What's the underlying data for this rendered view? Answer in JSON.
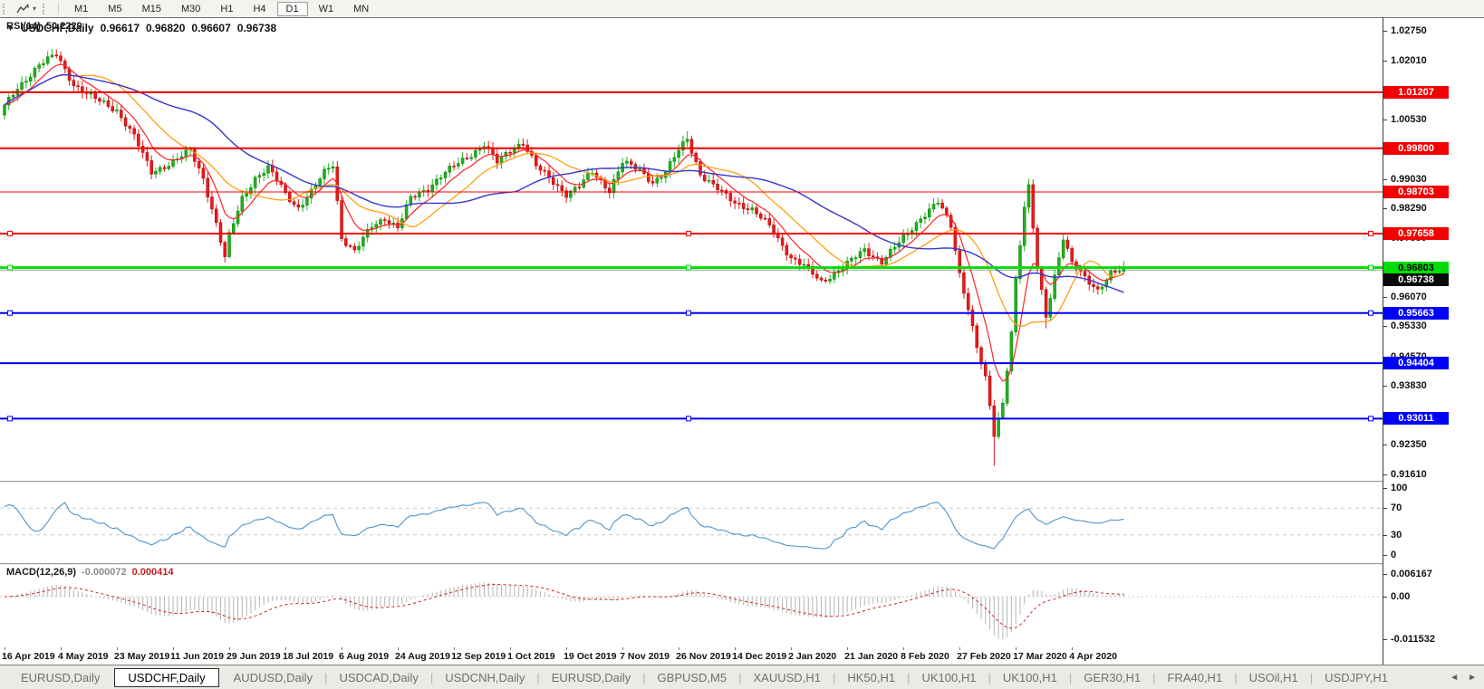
{
  "toolbar": {
    "caret": "▾",
    "timeframes": [
      {
        "label": "M1",
        "active": false
      },
      {
        "label": "M5",
        "active": false
      },
      {
        "label": "M15",
        "active": false
      },
      {
        "label": "M30",
        "active": false
      },
      {
        "label": "H1",
        "active": false
      },
      {
        "label": "H4",
        "active": false
      },
      {
        "label": "D1",
        "active": true
      },
      {
        "label": "W1",
        "active": false
      },
      {
        "label": "MN",
        "active": false
      }
    ]
  },
  "chart_header": {
    "collapse": "▼",
    "symbol": "USDCHF,Daily",
    "open": "0.96617",
    "high": "0.96820",
    "low": "0.96607",
    "close": "0.96738"
  },
  "price_axis": {
    "ticks": [
      "1.02750",
      "1.02010",
      "1.00530",
      "0.99030",
      "0.98290",
      "0.97550",
      "0.96070",
      "0.95330",
      "0.94570",
      "0.93830",
      "0.92350",
      "0.91610"
    ]
  },
  "panels": {
    "rsi": {
      "name": "RSI(14)",
      "value": "50.2229",
      "axis": [
        "100",
        "70",
        "30",
        "0"
      ]
    },
    "macd": {
      "name": "MACD(12,26,9)",
      "main_value": "-0.000072",
      "signal_value": "0.000414",
      "axis": [
        "0.006167",
        "0.00",
        "-0.011532"
      ]
    }
  },
  "dates": [
    {
      "i": 0,
      "text": "16 Apr 2019"
    },
    {
      "i": 13,
      "text": "4 May 2019"
    },
    {
      "i": 26,
      "text": "23 May 2019"
    },
    {
      "i": 39,
      "text": "11 Jun 2019"
    },
    {
      "i": 52,
      "text": "29 Jun 2019"
    },
    {
      "i": 65,
      "text": "18 Jul 2019"
    },
    {
      "i": 78,
      "text": "6 Aug 2019"
    },
    {
      "i": 91,
      "text": "24 Aug 2019"
    },
    {
      "i": 104,
      "text": "12 Sep 2019"
    },
    {
      "i": 117,
      "text": "1 Oct 2019"
    },
    {
      "i": 130,
      "text": "19 Oct 2019"
    },
    {
      "i": 143,
      "text": "7 Nov 2019"
    },
    {
      "i": 156,
      "text": "26 Nov 2019"
    },
    {
      "i": 169,
      "text": "14 Dec 2019"
    },
    {
      "i": 182,
      "text": "2 Jan 2020"
    },
    {
      "i": 195,
      "text": "21 Jan 2020"
    },
    {
      "i": 208,
      "text": "8 Feb 2020"
    },
    {
      "i": 221,
      "text": "27 Feb 2020"
    },
    {
      "i": 234,
      "text": "17 Mar 2020"
    },
    {
      "i": 247,
      "text": "4 Apr 2020"
    }
  ],
  "tabs": {
    "items": [
      {
        "label": "EURUSD,Daily",
        "active": false
      },
      {
        "label": "USDCHF,Daily",
        "active": true
      },
      {
        "label": "AUDUSD,Daily",
        "active": false
      },
      {
        "label": "USDCAD,Daily",
        "active": false
      },
      {
        "label": "USDCNH,Daily",
        "active": false
      },
      {
        "label": "EURUSD,Daily",
        "active": false
      },
      {
        "label": "GBPUSD,M5",
        "active": false
      },
      {
        "label": "XAUUSD,H1",
        "active": false
      },
      {
        "label": "HK50,H1",
        "active": false
      },
      {
        "label": "UK100,H1",
        "active": false
      },
      {
        "label": "UK100,H1",
        "active": false
      },
      {
        "label": "GER30,H1",
        "active": false
      },
      {
        "label": "FRA40,H1",
        "active": false
      },
      {
        "label": "USOil,H1",
        "active": false
      },
      {
        "label": "USDJPY,H1",
        "active": false
      }
    ],
    "scroll_left": "◄",
    "scroll_right": "►"
  },
  "chart_data": {
    "type": "candlestick",
    "symbol": "USDCHF",
    "timeframe": "Daily",
    "ohlc_display": {
      "open": 0.96617,
      "high": 0.9682,
      "low": 0.96607,
      "close": 0.96738
    },
    "ylim": [
      0.9161,
      1.0275
    ],
    "n_candles": 260,
    "candle_colors": {
      "up": "#1fb11f",
      "up_edge": "#0b7d0b",
      "down": "#e81b1b",
      "down_edge": "#b00000"
    },
    "close_waypoints": [
      [
        0,
        1.0085
      ],
      [
        3,
        1.013
      ],
      [
        8,
        1.019
      ],
      [
        12,
        1.0215
      ],
      [
        16,
        1.014
      ],
      [
        20,
        1.011
      ],
      [
        26,
        1.0075
      ],
      [
        30,
        1.001
      ],
      [
        34,
        0.992
      ],
      [
        39,
        0.9945
      ],
      [
        43,
        0.9975
      ],
      [
        46,
        0.9905
      ],
      [
        49,
        0.979
      ],
      [
        51,
        0.9705
      ],
      [
        52,
        0.976
      ],
      [
        55,
        0.9855
      ],
      [
        58,
        0.9905
      ],
      [
        61,
        0.993
      ],
      [
        64,
        0.9885
      ],
      [
        65,
        0.9865
      ],
      [
        68,
        0.983
      ],
      [
        71,
        0.987
      ],
      [
        74,
        0.992
      ],
      [
        76,
        0.994
      ],
      [
        78,
        0.9755
      ],
      [
        81,
        0.972
      ],
      [
        85,
        0.9785
      ],
      [
        88,
        0.9805
      ],
      [
        91,
        0.978
      ],
      [
        94,
        0.9855
      ],
      [
        98,
        0.988
      ],
      [
        101,
        0.991
      ],
      [
        104,
        0.9935
      ],
      [
        108,
        0.9965
      ],
      [
        111,
        0.999
      ],
      [
        114,
        0.9945
      ],
      [
        117,
        0.9975
      ],
      [
        120,
        0.9995
      ],
      [
        123,
        0.9935
      ],
      [
        126,
        0.9905
      ],
      [
        130,
        0.9865
      ],
      [
        133,
        0.9885
      ],
      [
        136,
        0.992
      ],
      [
        140,
        0.9875
      ],
      [
        143,
        0.9945
      ],
      [
        147,
        0.9925
      ],
      [
        150,
        0.9895
      ],
      [
        153,
        0.992
      ],
      [
        156,
        0.9975
      ],
      [
        158,
        1.0005
      ],
      [
        161,
        0.9915
      ],
      [
        164,
        0.9885
      ],
      [
        169,
        0.9845
      ],
      [
        173,
        0.9825
      ],
      [
        177,
        0.9785
      ],
      [
        182,
        0.9705
      ],
      [
        185,
        0.9685
      ],
      [
        189,
        0.9645
      ],
      [
        192,
        0.9665
      ],
      [
        195,
        0.969
      ],
      [
        199,
        0.9725
      ],
      [
        203,
        0.9695
      ],
      [
        208,
        0.9755
      ],
      [
        212,
        0.9805
      ],
      [
        216,
        0.9845
      ],
      [
        219,
        0.9785
      ],
      [
        221,
        0.9665
      ],
      [
        223,
        0.958
      ],
      [
        225,
        0.948
      ],
      [
        227,
        0.94
      ],
      [
        229,
        0.926
      ],
      [
        231,
        0.934
      ],
      [
        233,
        0.952
      ],
      [
        234,
        0.965
      ],
      [
        236,
        0.983
      ],
      [
        237,
        0.988
      ],
      [
        239,
        0.968
      ],
      [
        241,
        0.956
      ],
      [
        243,
        0.966
      ],
      [
        245,
        0.9755
      ],
      [
        247,
        0.969
      ],
      [
        250,
        0.9655
      ],
      [
        253,
        0.9625
      ],
      [
        256,
        0.9665
      ],
      [
        259,
        0.9674
      ]
    ],
    "wick_extremes": [
      {
        "i": 12,
        "high": 1.0227
      },
      {
        "i": 51,
        "low": 0.9693
      },
      {
        "i": 158,
        "high": 1.0023
      },
      {
        "i": 229,
        "low": 0.9182
      },
      {
        "i": 237,
        "high": 0.9901
      },
      {
        "i": 241,
        "low": 0.9528
      }
    ],
    "moving_averages": [
      {
        "name": "ma-fast",
        "period": 8,
        "color": "#ff2222",
        "width": 1.2
      },
      {
        "name": "ma-mid",
        "period": 18,
        "color": "#ff9900",
        "width": 1.2
      },
      {
        "name": "ma-slow",
        "period": 42,
        "color": "#3535cf",
        "width": 1.4
      }
    ],
    "hlines": [
      {
        "price": 1.01207,
        "label": "1.01207",
        "color": "#f40000",
        "text": "#ffffff",
        "width": 2,
        "selected": false
      },
      {
        "price": 0.998,
        "label": "0.99800",
        "color": "#f40000",
        "text": "#ffffff",
        "width": 2,
        "selected": false
      },
      {
        "price": 0.98703,
        "label": "0.98703",
        "color": "#f40000",
        "text": "#ffffff",
        "width": 1,
        "selected": false
      },
      {
        "price": 0.97658,
        "label": "0.97658",
        "color": "#f40000",
        "text": "#ffffff",
        "width": 2,
        "selected": true
      },
      {
        "price": 0.96803,
        "label": "0.96803",
        "color": "#00dd00",
        "text": "#000000",
        "width": 3,
        "selected": true
      },
      {
        "price": 0.95663,
        "label": "0.95663",
        "color": "#0000ff",
        "text": "#ffffff",
        "width": 2,
        "selected": true
      },
      {
        "price": 0.94404,
        "label": "0.94404",
        "color": "#0000ff",
        "text": "#ffffff",
        "width": 2,
        "selected": false
      },
      {
        "price": 0.93011,
        "label": "0.93011",
        "color": "#0000ff",
        "text": "#ffffff",
        "width": 2,
        "selected": true
      }
    ],
    "bid": {
      "price": 0.96738,
      "label": "0.96738",
      "line_color": "#b4b4b4",
      "tag_bg": "#0a0a0a",
      "tag_text": "#ffffff"
    },
    "indicators": {
      "rsi": {
        "period": 14,
        "levels": [
          70,
          30
        ],
        "last": 50.2229,
        "color": "#4f94cd",
        "range": [
          0,
          100
        ]
      },
      "macd": {
        "fast": 12,
        "slow": 26,
        "signal": 9,
        "last_main": -7.2e-05,
        "last_signal": 0.000414,
        "main_color": "#b4b4b4",
        "signal_color": "#d02020",
        "ymax": 0.006167,
        "ymin": -0.011532
      }
    }
  }
}
